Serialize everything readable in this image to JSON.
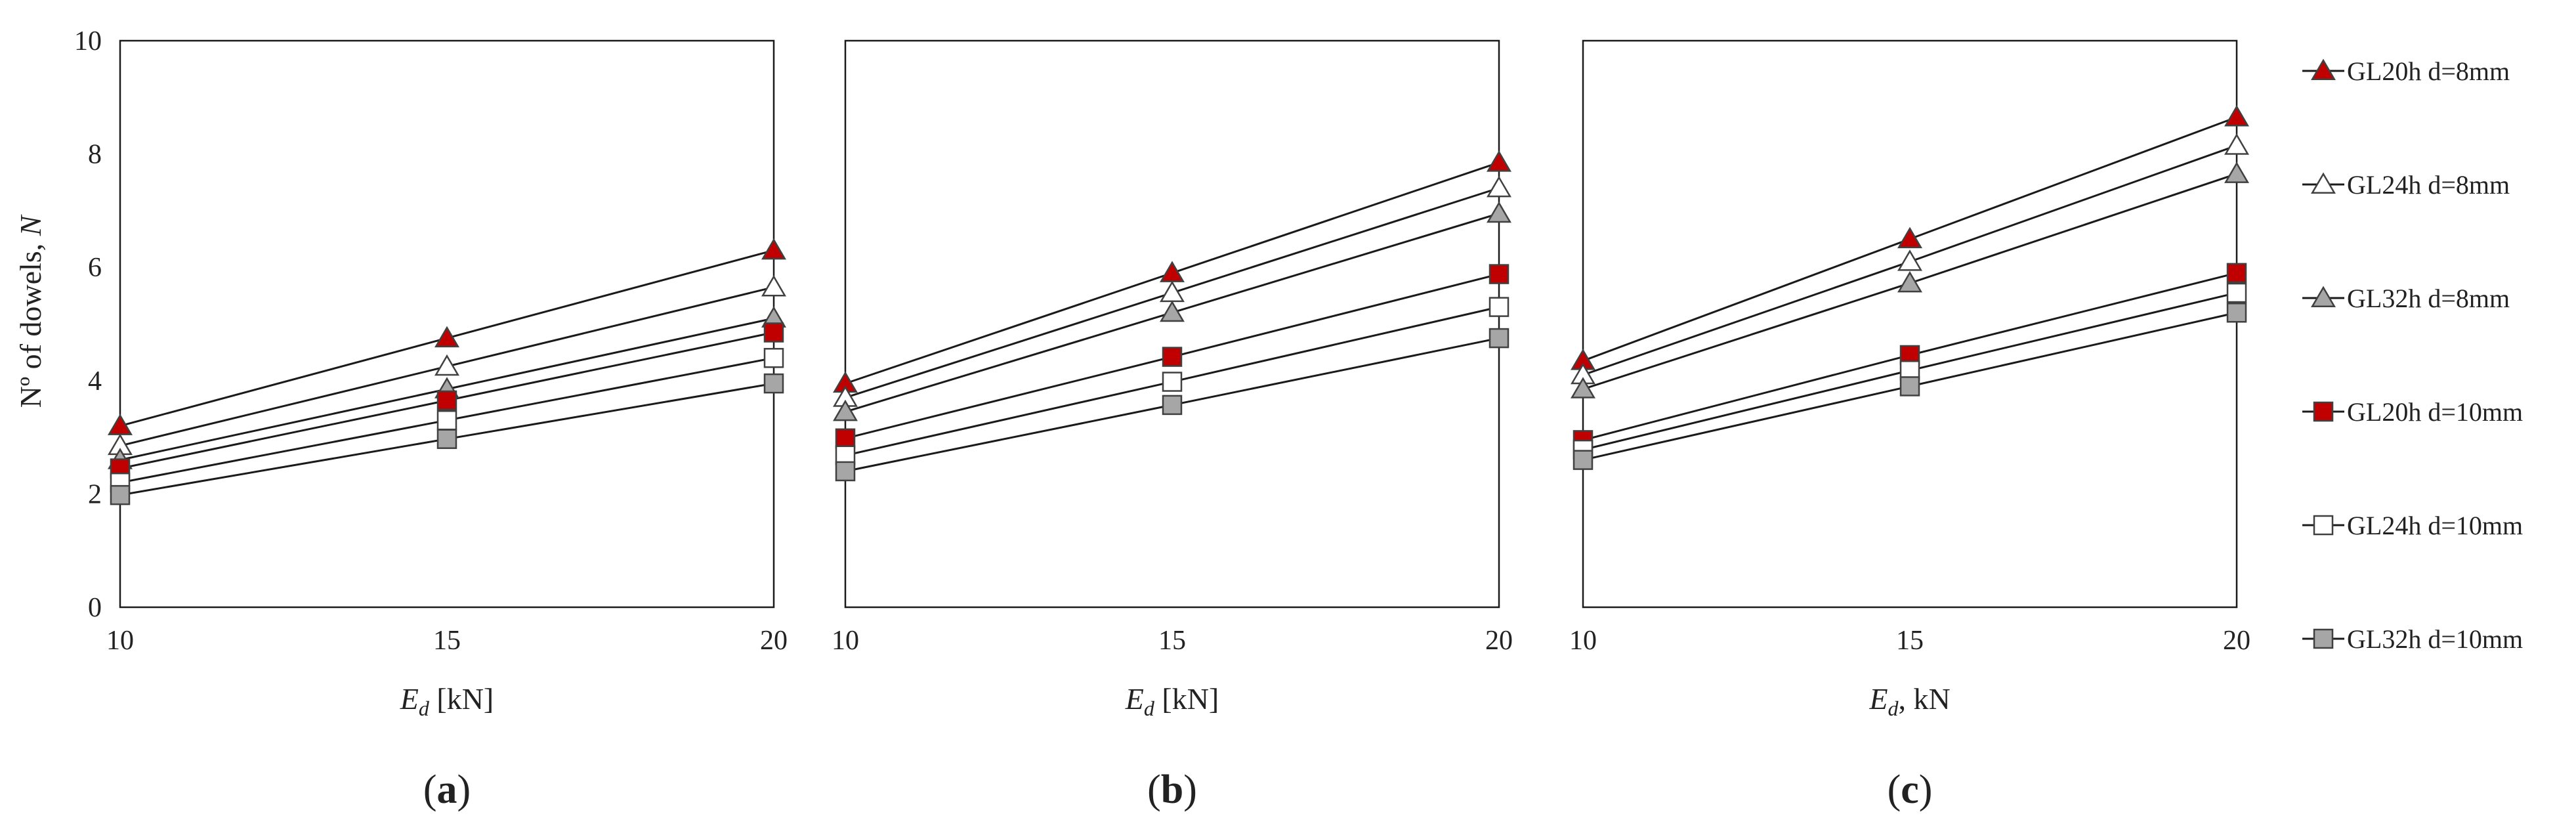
{
  "figure": {
    "ylabel_main": "Nº of dowels, ",
    "ylabel_var": "N",
    "legend": [
      {
        "label": "GL20h d=8mm",
        "marker": "triangle",
        "fill": "#c00000"
      },
      {
        "label": "GL24h d=8mm",
        "marker": "triangle",
        "fill": "#ffffff"
      },
      {
        "label": "GL32h d=8mm",
        "marker": "triangle",
        "fill": "#a6a6a6"
      },
      {
        "label": "GL20h d=10mm",
        "marker": "square",
        "fill": "#c00000"
      },
      {
        "label": "GL24h d=10mm",
        "marker": "square",
        "fill": "#ffffff"
      },
      {
        "label": "GL32h d=10mm",
        "marker": "square",
        "fill": "#a6a6a6"
      }
    ],
    "line_color": "#1a1a1a"
  },
  "chart_data": [
    {
      "type": "line",
      "panel": "a",
      "xlabel_var": "E",
      "xlabel_sub": "d",
      "xlabel_unit": " [kN]",
      "x": [
        10,
        15,
        20
      ],
      "xlim": [
        10,
        20
      ],
      "ylim": [
        0,
        10
      ],
      "yticks": [
        0,
        2,
        4,
        6,
        8,
        10
      ],
      "series": [
        {
          "name": "GL20h d=8mm",
          "values": [
            3.2,
            4.75,
            6.3
          ]
        },
        {
          "name": "GL24h d=8mm",
          "values": [
            2.85,
            4.25,
            5.65
          ]
        },
        {
          "name": "GL32h d=8mm",
          "values": [
            2.6,
            3.85,
            5.1
          ]
        },
        {
          "name": "GL20h d=10mm",
          "values": [
            2.45,
            3.65,
            4.85
          ]
        },
        {
          "name": "GL24h d=10mm",
          "values": [
            2.2,
            3.3,
            4.4
          ]
        },
        {
          "name": "GL32h d=10mm",
          "values": [
            1.98,
            2.97,
            3.95
          ]
        }
      ]
    },
    {
      "type": "line",
      "panel": "b",
      "xlabel_var": "E",
      "xlabel_sub": "d",
      "xlabel_unit": " [kN]",
      "x": [
        10,
        15,
        20
      ],
      "xlim": [
        10,
        20
      ],
      "ylim": [
        0,
        10
      ],
      "yticks": [
        0,
        2,
        4,
        6,
        8,
        10
      ],
      "series": [
        {
          "name": "GL20h d=8mm",
          "values": [
            3.95,
            5.9,
            7.85
          ]
        },
        {
          "name": "GL24h d=8mm",
          "values": [
            3.7,
            5.55,
            7.4
          ]
        },
        {
          "name": "GL32h d=8mm",
          "values": [
            3.45,
            5.2,
            6.95
          ]
        },
        {
          "name": "GL20h d=10mm",
          "values": [
            2.98,
            4.42,
            5.88
          ]
        },
        {
          "name": "GL24h d=10mm",
          "values": [
            2.68,
            3.98,
            5.3
          ]
        },
        {
          "name": "GL32h d=10mm",
          "values": [
            2.4,
            3.57,
            4.75
          ]
        }
      ]
    },
    {
      "type": "line",
      "panel": "c",
      "xlabel_var": "E",
      "xlabel_sub": "d",
      "xlabel_unit": ", kN",
      "x": [
        10,
        15,
        20
      ],
      "xlim": [
        10,
        20
      ],
      "ylim": [
        0,
        10
      ],
      "yticks": [
        0,
        2,
        4,
        6,
        8,
        10
      ],
      "series": [
        {
          "name": "GL20h d=8mm",
          "values": [
            4.35,
            6.5,
            8.65
          ]
        },
        {
          "name": "GL24h d=8mm",
          "values": [
            4.1,
            6.1,
            8.15
          ]
        },
        {
          "name": "GL32h d=8mm",
          "values": [
            3.85,
            5.72,
            7.65
          ]
        },
        {
          "name": "GL20h d=10mm",
          "values": [
            2.95,
            4.45,
            5.9
          ]
        },
        {
          "name": "GL24h d=10mm",
          "values": [
            2.78,
            4.18,
            5.55
          ]
        },
        {
          "name": "GL32h d=10mm",
          "values": [
            2.6,
            3.9,
            5.2
          ]
        }
      ]
    }
  ]
}
